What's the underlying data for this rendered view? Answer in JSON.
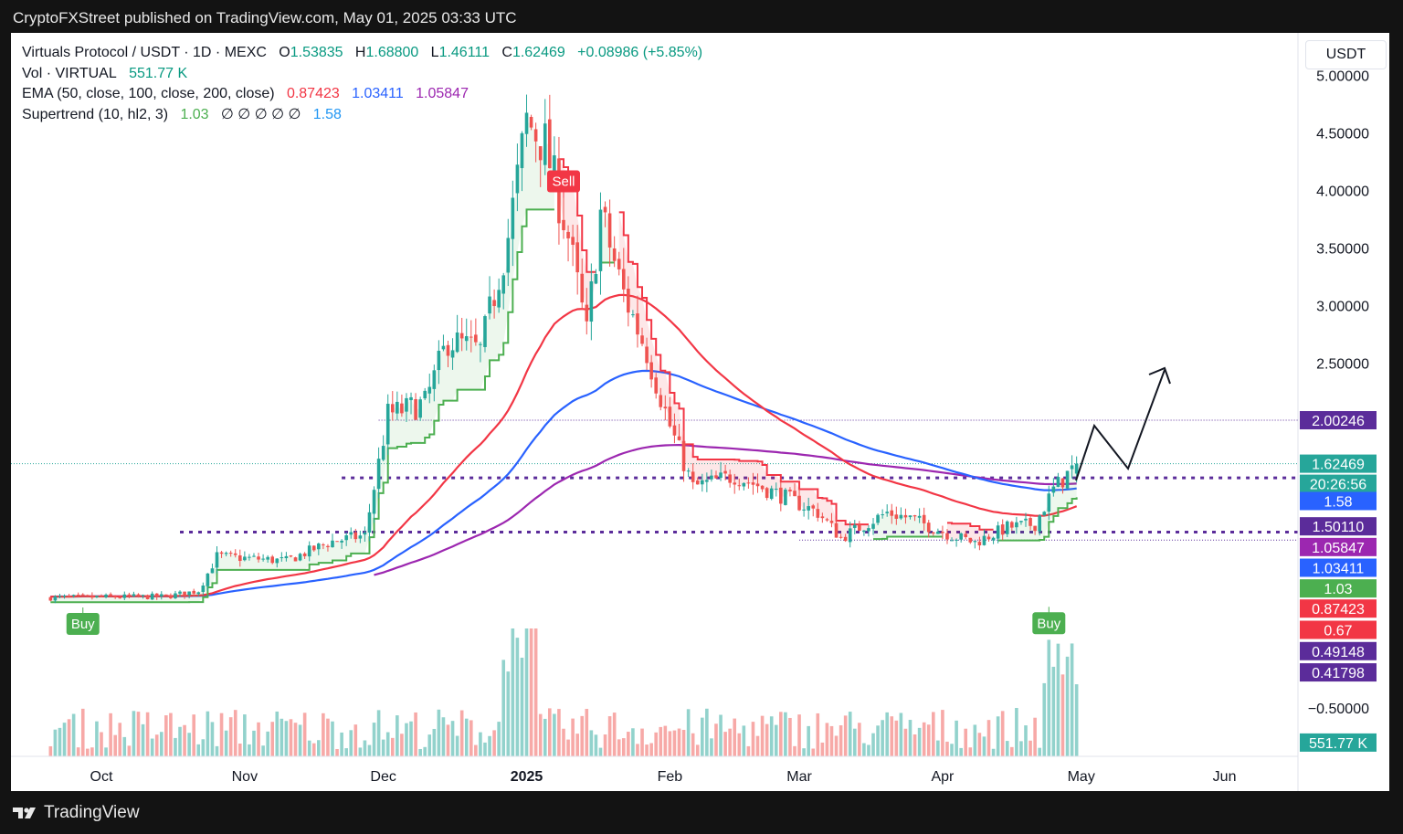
{
  "header": {
    "published_by": "CryptoFXStreet published on TradingView.com, May 01, 2025 03:33 UTC"
  },
  "legend": {
    "symbol": "Virtuals Protocol / USDT · 1D · MEXC",
    "o_label": "O",
    "open": "1.53835",
    "h_label": "H",
    "high": "1.68800",
    "l_label": "L",
    "low": "1.46111",
    "c_label": "C",
    "close": "1.62469",
    "change": "+0.08986 (+5.85%)",
    "vol_label": "Vol · VIRTUAL",
    "vol_value": "551.77 K",
    "ema_label": "EMA (50, close, 100, close, 200, close)",
    "ema50": "0.87423",
    "ema100": "1.03411",
    "ema200": "1.05847",
    "st_label": "Supertrend (10, hl2, 3)",
    "st_up": "1.03",
    "st_blank": "∅ ∅ ∅ ∅ ∅",
    "st_down": "1.58"
  },
  "currency_button": "USDT",
  "footer": {
    "brand": "TradingView"
  },
  "colors": {
    "up": "#26a69a",
    "down": "#ef5350",
    "ema50": "#f23645",
    "ema100": "#2962ff",
    "ema200": "#9c27b0",
    "st_up": "#4caf50",
    "st_down": "#f23645",
    "level": "#5b2c9a"
  },
  "chart_data": {
    "type": "candlestick",
    "title": "Virtuals Protocol / USDT · 1D · MEXC",
    "x_ticks": [
      "Oct",
      "Nov",
      "Dec",
      "2025",
      "Feb",
      "Mar",
      "Apr",
      "May",
      "Jun"
    ],
    "y_ticks": [
      "5.00000",
      "4.50000",
      "4.00000",
      "3.50000",
      "3.00000",
      "2.50000",
      "−0.50000"
    ],
    "ylim": [
      -0.92,
      5.37
    ],
    "price_keypoints": [
      {
        "date": "2024-09-20",
        "price": 0.46
      },
      {
        "date": "2024-10-15",
        "price": 0.47
      },
      {
        "date": "2024-10-22",
        "price": 0.52
      },
      {
        "date": "2024-10-26",
        "price": 0.82
      },
      {
        "date": "2024-11-10",
        "price": 0.78
      },
      {
        "date": "2024-11-20",
        "price": 0.95
      },
      {
        "date": "2024-11-27",
        "price": 1.0
      },
      {
        "date": "2024-12-02",
        "price": 2.05
      },
      {
        "date": "2024-12-10",
        "price": 2.15
      },
      {
        "date": "2024-12-15",
        "price": 2.7
      },
      {
        "date": "2024-12-22",
        "price": 2.6
      },
      {
        "date": "2024-12-28",
        "price": 3.6
      },
      {
        "date": "2025-01-01",
        "price": 4.6
      },
      {
        "date": "2025-01-05",
        "price": 4.4
      },
      {
        "date": "2025-01-10",
        "price": 3.6
      },
      {
        "date": "2025-01-14",
        "price": 2.75
      },
      {
        "date": "2025-01-17",
        "price": 3.8
      },
      {
        "date": "2025-01-22",
        "price": 3.1
      },
      {
        "date": "2025-01-27",
        "price": 2.6
      },
      {
        "date": "2025-02-01",
        "price": 1.95
      },
      {
        "date": "2025-02-06",
        "price": 1.42
      },
      {
        "date": "2025-02-15",
        "price": 1.52
      },
      {
        "date": "2025-02-25",
        "price": 1.35
      },
      {
        "date": "2025-03-05",
        "price": 1.2
      },
      {
        "date": "2025-03-10",
        "price": 0.98
      },
      {
        "date": "2025-03-20",
        "price": 1.2
      },
      {
        "date": "2025-03-25",
        "price": 1.15
      },
      {
        "date": "2025-04-03",
        "price": 1.0
      },
      {
        "date": "2025-04-08",
        "price": 0.94
      },
      {
        "date": "2025-04-15",
        "price": 1.07
      },
      {
        "date": "2025-04-21",
        "price": 1.1
      },
      {
        "date": "2025-04-25",
        "price": 1.4
      },
      {
        "date": "2025-04-30",
        "price": 1.62
      }
    ],
    "series": [
      {
        "name": "EMA 50",
        "last": 0.87423
      },
      {
        "name": "EMA 100",
        "last": 1.03411
      },
      {
        "name": "EMA 200",
        "last": 1.05847
      },
      {
        "name": "Supertrend",
        "last": 1.03
      }
    ],
    "horizontal_levels": [
      2.00246,
      1.5011,
      1.03,
      0.67
    ],
    "axis_labels": [
      {
        "text": "2.00246",
        "color": "#5b2c9a",
        "price": 2.00246
      },
      {
        "text": "1.62469",
        "color": "#26a69a",
        "price": 1.62469
      },
      {
        "text": "20:26:56",
        "color": "#26a69a",
        "price": 1.45
      },
      {
        "text": "1.58",
        "color": "#2962ff",
        "price": 1.3
      },
      {
        "text": "1.50110",
        "color": "#5b2c9a",
        "price": 1.08
      },
      {
        "text": "1.05847",
        "color": "#9c27b0",
        "price": 0.9
      },
      {
        "text": "1.03411",
        "color": "#2962ff",
        "price": 0.72
      },
      {
        "text": "1.03",
        "color": "#4caf50",
        "price": 0.54
      },
      {
        "text": "0.87423",
        "color": "#f23645",
        "price": 0.365
      },
      {
        "text": "0.67",
        "color": "#f23645",
        "price": 0.18
      },
      {
        "text": "0.49148",
        "color": "#5b2c9a",
        "price": -0.005
      },
      {
        "text": "0.41798",
        "color": "#5b2c9a",
        "price": -0.19
      },
      {
        "text": "551.77 K",
        "color": "#26a69a",
        "price": -0.8
      }
    ],
    "signals": [
      {
        "label": "Buy",
        "date": "2024-09-27",
        "type": "buy"
      },
      {
        "label": "Sell",
        "date": "2025-01-09",
        "type": "sell"
      },
      {
        "label": "Buy",
        "date": "2025-04-24",
        "type": "buy"
      }
    ]
  }
}
